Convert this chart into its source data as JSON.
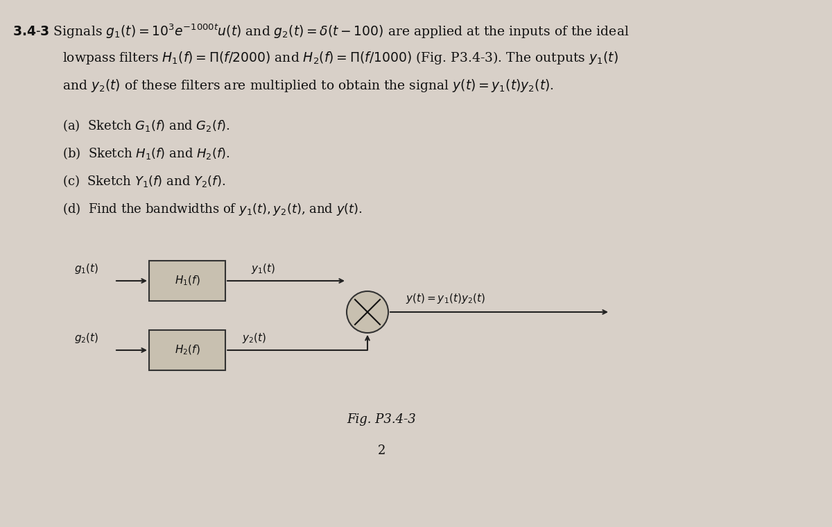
{
  "background_color": "#d8d0c8",
  "title_bold": "3.4-3",
  "main_text_line1": " Signals $g_1(t) = 10^3e^{-1000t}u(t)$ and $g_2(t) = \\delta(t - 100)$ are applied at the inputs of the ideal",
  "main_text_line2": "lowpass filters $H_1(f) = \\Pi(f/2000)$ and $H_2(f) = \\Pi(f/1000)$ (Fig. P3.4-3). The outputs $y_1(t)$",
  "main_text_line3": "and $y_2(t)$ of these filters are multiplied to obtain the signal $y(t) = y_1(t)y_2(t)$.",
  "part_a": "(a)  Sketch $G_1(f)$ and $G_2(f)$.",
  "part_b": "(b)  Sketch $H_1(f)$ and $H_2(f)$.",
  "part_c": "(c)  Sketch $Y_1(f)$ and $Y_2(f)$.",
  "part_d": "(d)  Find the bandwidths of $y_1(t), y_2(t)$, and $y(t)$.",
  "fig_label": "Fig. P3.4-3",
  "fig_number": "2",
  "font_size_main": 13.5,
  "font_size_parts": 13.0,
  "font_size_diagram": 11.0,
  "box_color": "#c8c0b0",
  "box_edge_color": "#333333",
  "arrow_color": "#222222",
  "text_color": "#111111"
}
